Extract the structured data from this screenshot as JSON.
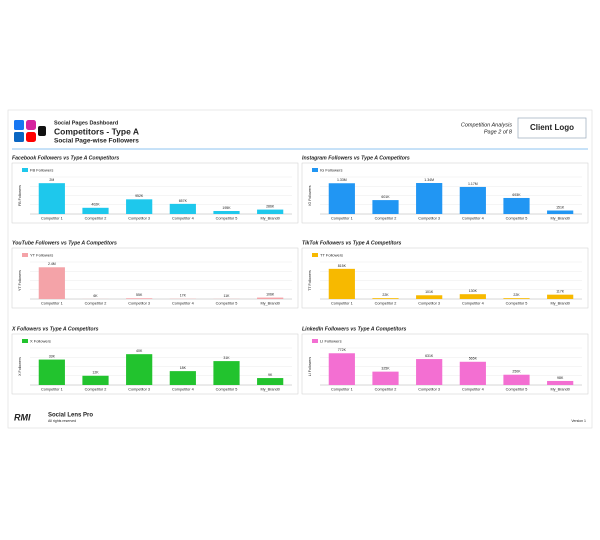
{
  "header": {
    "subtitle": "Social Pages Dashboard",
    "title": "Competitors - Type A",
    "section": "Social Page-wise Followers",
    "report": "Competition Analysis",
    "page": "Page 2 of 8",
    "logo": "Client Logo"
  },
  "footer": {
    "brand": "RMI",
    "product": "Social Lens Pro",
    "rights": "All rights reserved",
    "version": "Version 1"
  },
  "chart_data": [
    {
      "type": "bar",
      "title": "Facebook Followers vs Type A Competitors",
      "y_label": "FB Followers",
      "categories": [
        "Competitor 1",
        "Competitor 2",
        "Competitor 3",
        "Competitor 4",
        "Competitor 5",
        "My_Brand0"
      ],
      "series": [
        {
          "name": "FB Followers",
          "color": "#1ec8ec",
          "values": [
            2000000,
            402000,
            952000,
            657000,
            195000,
            286000
          ],
          "value_labels": [
            "2M",
            "402K",
            "952K",
            "657K",
            "195K",
            "286K"
          ]
        }
      ],
      "ylim": [
        0,
        2400000
      ],
      "grid": true
    },
    {
      "type": "bar",
      "title": "Instagram Followers vs Type A Competitors",
      "y_label": "IG Followers",
      "categories": [
        "Competitor 1",
        "Competitor 2",
        "Competitor 3",
        "Competitor 4",
        "Competitor 5",
        "My_Brand0"
      ],
      "series": [
        {
          "name": "IG Followers",
          "color": "#2196f3",
          "values": [
            1330000,
            601000,
            1340000,
            1170000,
            693000,
            151000
          ],
          "value_labels": [
            "1.33M",
            "601K",
            "1.34M",
            "1.17M",
            "693K",
            "151K"
          ]
        }
      ],
      "ylim": [
        0,
        1600000
      ],
      "grid": true
    },
    {
      "type": "bar",
      "title": "YouTube Followers vs Type A Competitors",
      "y_label": "YT Followers",
      "categories": [
        "Competitor 1",
        "Competitor 2",
        "Competitor 3",
        "Competitor 4",
        "Competitor 5",
        "My_Brand0"
      ],
      "series": [
        {
          "name": "YT Followers",
          "color": "#f4a3a8",
          "values": [
            2400000,
            6000,
            55000,
            17000,
            11000,
            106000
          ],
          "value_labels": [
            "2.4M",
            "6K",
            "55K",
            "17K",
            "11K",
            "106K"
          ]
        }
      ],
      "ylim": [
        0,
        2800000
      ],
      "grid": true
    },
    {
      "type": "bar",
      "title": "TikTok Followers vs Type A Competitors",
      "y_label": "TT Followers",
      "categories": [
        "Competitor 1",
        "Competitor 2",
        "Competitor 3",
        "Competitor 4",
        "Competitor 5",
        "My_Brand0"
      ],
      "series": [
        {
          "name": "TT Followers",
          "color": "#f7b900",
          "values": [
            815000,
            22000,
            101000,
            130000,
            22000,
            117000
          ],
          "value_labels": [
            "815K",
            "22K",
            "101K",
            "130K",
            "22K",
            "117K"
          ]
        }
      ],
      "ylim": [
        0,
        1000000
      ],
      "grid": true
    },
    {
      "type": "bar",
      "title": "X Followers vs Type A Competitors",
      "y_label": "X Followers",
      "categories": [
        "Competitor 1",
        "Competitor 2",
        "Competitor 3",
        "Competitor 4",
        "Competitor 5",
        "My_Brand0"
      ],
      "series": [
        {
          "name": "X Followers",
          "color": "#22c32e",
          "values": [
            33000,
            12000,
            40000,
            18000,
            31000,
            9000
          ],
          "value_labels": [
            "33K",
            "12K",
            "40K",
            "18K",
            "31K",
            "9K"
          ]
        }
      ],
      "ylim": [
        0,
        48000
      ],
      "grid": true
    },
    {
      "type": "bar",
      "title": "LinkedIn Followers vs Type A Competitors",
      "y_label": "LI Followers",
      "categories": [
        "Competitor 1",
        "Competitor 2",
        "Competitor 3",
        "Competitor 4",
        "Competitor 5",
        "My_Brand0"
      ],
      "series": [
        {
          "name": "LI Followers",
          "color": "#f36fd2",
          "values": [
            772000,
            325000,
            631000,
            565000,
            250000,
            98000
          ],
          "value_labels": [
            "772K",
            "325K",
            "631K",
            "565K",
            "250K",
            "98K"
          ]
        }
      ],
      "ylim": [
        0,
        900000
      ],
      "grid": true
    }
  ]
}
